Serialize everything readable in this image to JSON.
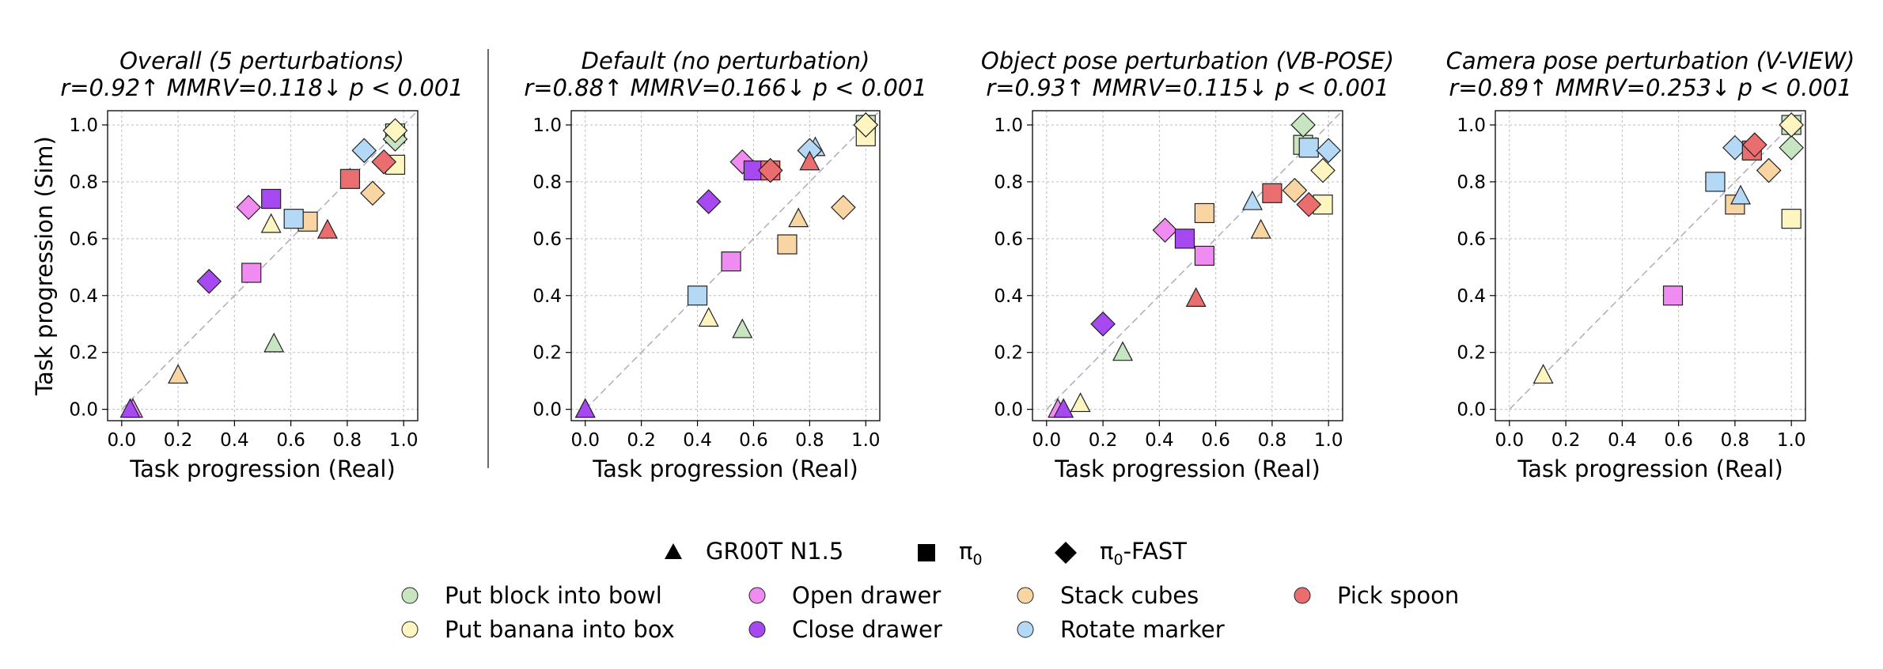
{
  "chart_data": [
    {
      "type": "scatter",
      "title": "Overall (5 perturbations)",
      "subtitle": "r=0.92↑ MMRV=0.118↓ p < 0.001",
      "xlabel": "Task progression (Real)",
      "ylabel": "Task progression (Sim)",
      "xlim": [
        -0.05,
        1.05
      ],
      "ylim": [
        -0.04,
        1.05
      ],
      "xticks": [
        "0.0",
        "0.2",
        "0.4",
        "0.6",
        "0.8",
        "1.0"
      ],
      "yticks": [
        "0.0",
        "0.2",
        "0.4",
        "0.6",
        "0.8",
        "1.0"
      ],
      "grid": true,
      "points": [
        {
          "task": "block",
          "policy": "gr00t",
          "x": 0.54,
          "y": 0.23
        },
        {
          "task": "block",
          "policy": "pi0",
          "x": 0.97,
          "y": 0.97
        },
        {
          "task": "block",
          "policy": "fast",
          "x": 0.97,
          "y": 0.95
        },
        {
          "task": "banana",
          "policy": "gr00t",
          "x": 0.53,
          "y": 0.65
        },
        {
          "task": "banana",
          "policy": "pi0",
          "x": 0.97,
          "y": 0.86
        },
        {
          "task": "banana",
          "policy": "fast",
          "x": 0.97,
          "y": 0.98
        },
        {
          "task": "open",
          "policy": "gr00t",
          "x": 0.04,
          "y": 0.0
        },
        {
          "task": "open",
          "policy": "pi0",
          "x": 0.46,
          "y": 0.48
        },
        {
          "task": "open",
          "policy": "fast",
          "x": 0.45,
          "y": 0.71
        },
        {
          "task": "close",
          "policy": "gr00t",
          "x": 0.03,
          "y": 0.0
        },
        {
          "task": "close",
          "policy": "pi0",
          "x": 0.53,
          "y": 0.74
        },
        {
          "task": "close",
          "policy": "fast",
          "x": 0.31,
          "y": 0.45
        },
        {
          "task": "stack",
          "policy": "gr00t",
          "x": 0.2,
          "y": 0.12
        },
        {
          "task": "stack",
          "policy": "pi0",
          "x": 0.66,
          "y": 0.66
        },
        {
          "task": "stack",
          "policy": "fast",
          "x": 0.89,
          "y": 0.76
        },
        {
          "task": "marker",
          "policy": "gr00t",
          "x": 0.81,
          "y": 0.81
        },
        {
          "task": "marker",
          "policy": "pi0",
          "x": 0.61,
          "y": 0.67
        },
        {
          "task": "marker",
          "policy": "fast",
          "x": 0.86,
          "y": 0.91
        },
        {
          "task": "spoon",
          "policy": "gr00t",
          "x": 0.73,
          "y": 0.63
        },
        {
          "task": "spoon",
          "policy": "pi0",
          "x": 0.81,
          "y": 0.81
        },
        {
          "task": "spoon",
          "policy": "fast",
          "x": 0.93,
          "y": 0.87
        }
      ]
    },
    {
      "type": "scatter",
      "title": "Default (no perturbation)",
      "subtitle": "r=0.88↑ MMRV=0.166↓ p < 0.001",
      "xlabel": "Task progression (Real)",
      "ylabel": "",
      "xlim": [
        -0.05,
        1.05
      ],
      "ylim": [
        -0.04,
        1.05
      ],
      "xticks": [
        "0.0",
        "0.2",
        "0.4",
        "0.6",
        "0.8",
        "1.0"
      ],
      "yticks": [
        "0.0",
        "0.2",
        "0.4",
        "0.6",
        "0.8",
        "1.0"
      ],
      "grid": true,
      "points": [
        {
          "task": "block",
          "policy": "gr00t",
          "x": 0.56,
          "y": 0.28
        },
        {
          "task": "block",
          "policy": "pi0",
          "x": 1.0,
          "y": 1.0
        },
        {
          "task": "block",
          "policy": "fast",
          "x": 1.0,
          "y": 1.0
        },
        {
          "task": "banana",
          "policy": "gr00t",
          "x": 0.44,
          "y": 0.32
        },
        {
          "task": "banana",
          "policy": "pi0",
          "x": 1.0,
          "y": 0.96
        },
        {
          "task": "banana",
          "policy": "fast",
          "x": 1.0,
          "y": 1.0
        },
        {
          "task": "open",
          "policy": "gr00t",
          "x": 0.0,
          "y": 0.0
        },
        {
          "task": "open",
          "policy": "pi0",
          "x": 0.52,
          "y": 0.52
        },
        {
          "task": "open",
          "policy": "fast",
          "x": 0.56,
          "y": 0.87
        },
        {
          "task": "close",
          "policy": "gr00t",
          "x": 0.0,
          "y": 0.0
        },
        {
          "task": "close",
          "policy": "pi0",
          "x": 0.6,
          "y": 0.84
        },
        {
          "task": "close",
          "policy": "fast",
          "x": 0.44,
          "y": 0.73
        },
        {
          "task": "stack",
          "policy": "gr00t",
          "x": 0.76,
          "y": 0.67
        },
        {
          "task": "stack",
          "policy": "pi0",
          "x": 0.72,
          "y": 0.58
        },
        {
          "task": "stack",
          "policy": "fast",
          "x": 0.92,
          "y": 0.71
        },
        {
          "task": "marker",
          "policy": "gr00t",
          "x": 0.82,
          "y": 0.92
        },
        {
          "task": "marker",
          "policy": "pi0",
          "x": 0.4,
          "y": 0.4
        },
        {
          "task": "marker",
          "policy": "fast",
          "x": 0.8,
          "y": 0.91
        },
        {
          "task": "spoon",
          "policy": "gr00t",
          "x": 0.8,
          "y": 0.87
        },
        {
          "task": "spoon",
          "policy": "pi0",
          "x": 0.66,
          "y": 0.84
        },
        {
          "task": "spoon",
          "policy": "fast",
          "x": 0.66,
          "y": 0.84
        }
      ]
    },
    {
      "type": "scatter",
      "title": "Object pose perturbation (VB-POSE)",
      "subtitle": "r=0.93↑ MMRV=0.115↓ p < 0.001",
      "xlabel": "Task progression (Real)",
      "ylabel": "",
      "xlim": [
        -0.05,
        1.05
      ],
      "ylim": [
        -0.04,
        1.05
      ],
      "xticks": [
        "0.0",
        "0.2",
        "0.4",
        "0.6",
        "0.8",
        "1.0"
      ],
      "yticks": [
        "0.0",
        "0.2",
        "0.4",
        "0.6",
        "0.8",
        "1.0"
      ],
      "grid": true,
      "points": [
        {
          "task": "block",
          "policy": "gr00t",
          "x": 0.27,
          "y": 0.2
        },
        {
          "task": "block",
          "policy": "pi0",
          "x": 0.91,
          "y": 0.93
        },
        {
          "task": "block",
          "policy": "fast",
          "x": 0.91,
          "y": 1.0
        },
        {
          "task": "banana",
          "policy": "gr00t",
          "x": 0.12,
          "y": 0.02
        },
        {
          "task": "banana",
          "policy": "pi0",
          "x": 0.98,
          "y": 0.72
        },
        {
          "task": "banana",
          "policy": "fast",
          "x": 0.98,
          "y": 0.84
        },
        {
          "task": "open",
          "policy": "gr00t",
          "x": 0.04,
          "y": 0.0
        },
        {
          "task": "open",
          "policy": "pi0",
          "x": 0.56,
          "y": 0.54
        },
        {
          "task": "open",
          "policy": "fast",
          "x": 0.42,
          "y": 0.63
        },
        {
          "task": "close",
          "policy": "gr00t",
          "x": 0.06,
          "y": 0.0
        },
        {
          "task": "close",
          "policy": "pi0",
          "x": 0.49,
          "y": 0.6
        },
        {
          "task": "close",
          "policy": "fast",
          "x": 0.2,
          "y": 0.3
        },
        {
          "task": "stack",
          "policy": "gr00t",
          "x": 0.76,
          "y": 0.63
        },
        {
          "task": "stack",
          "policy": "pi0",
          "x": 0.56,
          "y": 0.69
        },
        {
          "task": "stack",
          "policy": "fast",
          "x": 0.88,
          "y": 0.77
        },
        {
          "task": "marker",
          "policy": "gr00t",
          "x": 0.73,
          "y": 0.73
        },
        {
          "task": "marker",
          "policy": "pi0",
          "x": 0.93,
          "y": 0.92
        },
        {
          "task": "marker",
          "policy": "fast",
          "x": 1.0,
          "y": 0.91
        },
        {
          "task": "spoon",
          "policy": "gr00t",
          "x": 0.53,
          "y": 0.39
        },
        {
          "task": "spoon",
          "policy": "pi0",
          "x": 0.8,
          "y": 0.76
        },
        {
          "task": "spoon",
          "policy": "fast",
          "x": 0.93,
          "y": 0.72
        }
      ]
    },
    {
      "type": "scatter",
      "title": "Camera pose perturbation (V-VIEW)",
      "subtitle": "r=0.89↑ MMRV=0.253↓ p < 0.001",
      "xlabel": "Task progression (Real)",
      "ylabel": "",
      "xlim": [
        -0.05,
        1.05
      ],
      "ylim": [
        -0.04,
        1.05
      ],
      "xticks": [
        "0.0",
        "0.2",
        "0.4",
        "0.6",
        "0.8",
        "1.0"
      ],
      "yticks": [
        "0.0",
        "0.2",
        "0.4",
        "0.6",
        "0.8",
        "1.0"
      ],
      "grid": true,
      "points": [
        {
          "task": "block",
          "policy": "pi0",
          "x": 1.0,
          "y": 1.0
        },
        {
          "task": "block",
          "policy": "fast",
          "x": 1.0,
          "y": 0.92
        },
        {
          "task": "banana",
          "policy": "gr00t",
          "x": 0.12,
          "y": 0.12
        },
        {
          "task": "banana",
          "policy": "pi0",
          "x": 1.0,
          "y": 0.67
        },
        {
          "task": "banana",
          "policy": "fast",
          "x": 1.0,
          "y": 1.0
        },
        {
          "task": "open",
          "policy": "pi0",
          "x": 0.58,
          "y": 0.4
        },
        {
          "task": "stack",
          "policy": "pi0",
          "x": 0.8,
          "y": 0.72
        },
        {
          "task": "stack",
          "policy": "fast",
          "x": 0.92,
          "y": 0.84
        },
        {
          "task": "marker",
          "policy": "gr00t",
          "x": 0.82,
          "y": 0.75
        },
        {
          "task": "marker",
          "policy": "pi0",
          "x": 0.73,
          "y": 0.8
        },
        {
          "task": "marker",
          "policy": "fast",
          "x": 0.8,
          "y": 0.92
        },
        {
          "task": "spoon",
          "policy": "gr00t",
          "x": 0.86,
          "y": 0.91
        },
        {
          "task": "spoon",
          "policy": "pi0",
          "x": 0.86,
          "y": 0.91
        },
        {
          "task": "spoon",
          "policy": "fast",
          "x": 0.87,
          "y": 0.93
        }
      ]
    }
  ],
  "legend": {
    "policies": [
      {
        "key": "gr00t",
        "shape": "triangle",
        "label": "GR00T N1.5"
      },
      {
        "key": "pi0",
        "shape": "square",
        "label_main": "π",
        "label_sub": "0"
      },
      {
        "key": "fast",
        "shape": "diamond",
        "label_main": "π",
        "label_sub": "0",
        "label_suffix": "-FAST"
      }
    ],
    "tasks": [
      {
        "key": "block",
        "label": "Put block into bowl",
        "color": "#c6e5c0"
      },
      {
        "key": "banana",
        "label": "Put banana into box",
        "color": "#fff5c1"
      },
      {
        "key": "open",
        "label": "Open drawer",
        "color": "#f08bf2"
      },
      {
        "key": "close",
        "label": "Close drawer",
        "color": "#a749f1"
      },
      {
        "key": "stack",
        "label": "Stack cubes",
        "color": "#fad5a4"
      },
      {
        "key": "marker",
        "label": "Rotate marker",
        "color": "#b3d9f6"
      },
      {
        "key": "spoon",
        "label": "Pick spoon",
        "color": "#ea6e70"
      }
    ]
  }
}
